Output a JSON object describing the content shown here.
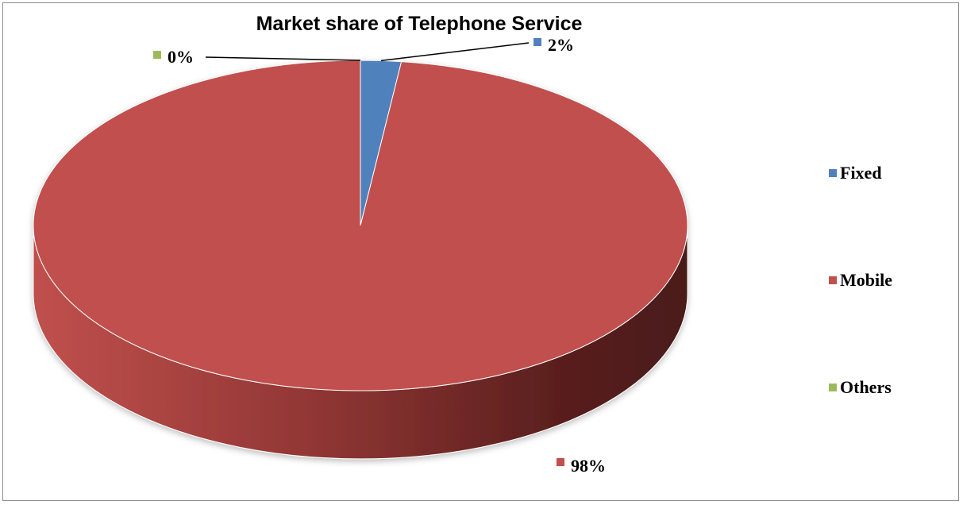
{
  "chart_data": {
    "type": "pie",
    "title": "Market share of Telephone Service",
    "categories": [
      "Fixed",
      "Mobile",
      "Others"
    ],
    "values": [
      2,
      98,
      0
    ],
    "data_labels": [
      "2%",
      "98%",
      "0%"
    ],
    "colors": [
      "#4f81bd",
      "#c0504d",
      "#9bbb59"
    ],
    "legend_position": "right",
    "style": "3d"
  }
}
